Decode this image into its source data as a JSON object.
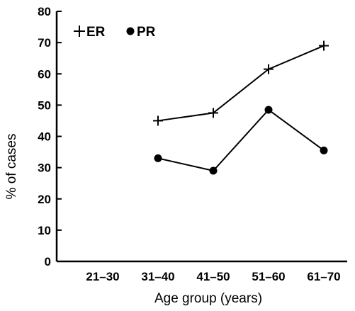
{
  "chart_data": {
    "type": "line",
    "title": "",
    "xlabel": "Age group (years)",
    "ylabel": "% of cases",
    "categories": [
      "21–30",
      "31–40",
      "41–50",
      "51–60",
      "61–70"
    ],
    "ylim": [
      0,
      80
    ],
    "y_ticks": [
      "0",
      "10",
      "20",
      "30",
      "40",
      "50",
      "60",
      "70",
      "80"
    ],
    "grid": false,
    "legend_position": "top-left",
    "series": [
      {
        "name": "ER",
        "marker": "plus",
        "values": [
          null,
          45,
          47.5,
          61.5,
          69
        ]
      },
      {
        "name": "PR",
        "marker": "circle",
        "values": [
          null,
          33,
          29,
          48.5,
          35.5
        ]
      }
    ],
    "colors": {
      "ink": "#000000",
      "background": "#ffffff"
    }
  }
}
